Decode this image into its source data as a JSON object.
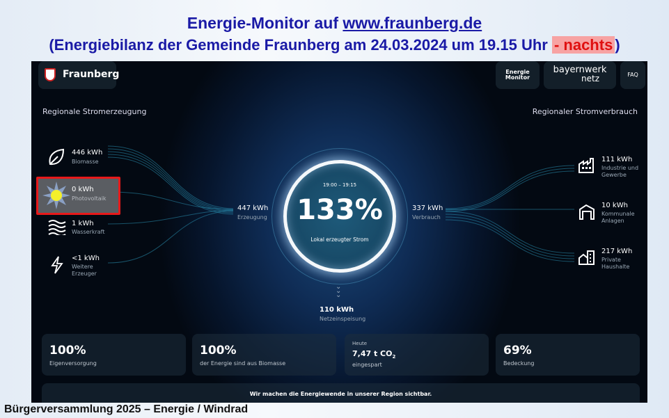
{
  "slide": {
    "title_line1_prefix": "Energie-Monitor auf ",
    "title_link": "www.fraunberg.de",
    "title_line2": "(Energiebilanz der Gemeinde Fraunberg am 24.03.2024 um 19.15 Uhr ",
    "title_highlight": "- nachts",
    "title_line2_end": ")",
    "footer": "Bürgerversammlung 2025 – Energie / Windrad",
    "title_color": "#1a1aa6",
    "highlight_color": "#e01010"
  },
  "header": {
    "brand": "Fraunberg",
    "nav": {
      "energie_monitor_1": "Energie",
      "energie_monitor_2": "Monitor",
      "bayernwerk_1": "bayernwerk",
      "bayernwerk_2": "netz",
      "faq": "FAQ"
    }
  },
  "generation": {
    "heading": "Regionale Stromerzeugung",
    "items": [
      {
        "value": "446 kWh",
        "label": "Biomasse",
        "icon": "leaf-icon"
      },
      {
        "value": "0 kWh",
        "label": "Photovoltaik",
        "icon": "sun-icon",
        "highlighted": true
      },
      {
        "value": "1 kWh",
        "label": "Wasserkraft",
        "icon": "waves-icon"
      },
      {
        "value": "<1 kWh",
        "label": "Weitere Erzeuger",
        "icon": "lightning-icon"
      }
    ],
    "total_value": "447 kWh",
    "total_label": "Erzeugung"
  },
  "consumption": {
    "heading": "Regionaler Stromverbrauch",
    "items": [
      {
        "value": "111 kWh",
        "label1": "Industrie und",
        "label2": "Gewerbe",
        "icon": "factory-icon"
      },
      {
        "value": "10 kWh",
        "label1": "Kommunale",
        "label2": "Anlagen",
        "icon": "hall-icon"
      },
      {
        "value": "217 kWh",
        "label1": "Private",
        "label2": "Haushalte",
        "icon": "house-icon"
      }
    ],
    "total_value": "337 kWh",
    "total_label": "Verbrauch"
  },
  "center": {
    "time": "19:00 – 19:15",
    "percent": "133%",
    "label": "Lokal erzeugter Strom"
  },
  "grid": {
    "value": "110 kWh",
    "label": "Netzeinspeisung"
  },
  "cards": [
    {
      "big": "100%",
      "small": "Eigenversorgung"
    },
    {
      "big": "100%",
      "small": "der Energie sind aus Biomasse"
    },
    {
      "top": "Heute",
      "big": "7,47 t CO",
      "sub": "2",
      "small": "eingespart"
    },
    {
      "big": "69%",
      "small": "Bedeckung"
    }
  ],
  "banner": "Wir machen die Energiewende in unserer Region sichtbar."
}
